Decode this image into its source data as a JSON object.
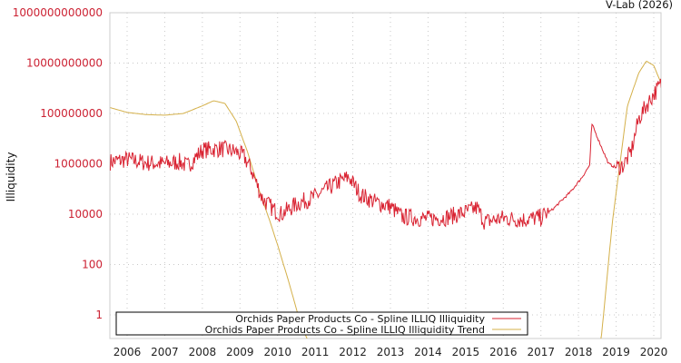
{
  "credit": "V-Lab (2026)",
  "colors": {
    "series": "#d92332",
    "trend": "#d4b04a",
    "grid": "#c8c8c8",
    "frame": "#cccccc",
    "ytick": "#cc2233"
  },
  "chart_data": {
    "type": "line",
    "title": "",
    "xlabel": "",
    "ylabel": "Illiquidity",
    "yscale": "log",
    "ylim": [
      0.1,
      1000000000000
    ],
    "xlim": [
      2005.55,
      2020.2
    ],
    "grid": true,
    "legend_position": "bottom-inside",
    "x_ticks": [
      "2006",
      "2007",
      "2008",
      "2009",
      "2010",
      "2011",
      "2012",
      "2013",
      "2014",
      "2015",
      "2016",
      "2017",
      "2018",
      "2019",
      "2020"
    ],
    "y_ticks": [
      "1000000000000",
      "10000000000",
      "100000000",
      "1000000",
      "10000",
      "100",
      "1"
    ],
    "legend": [
      "Orchids Paper Products Co - Spline ILLIQ Illiquidity",
      "Orchids Paper Products Co - Spline ILLIQ Illiquidity Trend"
    ],
    "series": [
      {
        "name": "Orchids Paper Products Co - Spline ILLIQ Illiquidity",
        "x": [
          2005.55,
          2006.0,
          2006.5,
          2007.0,
          2007.4,
          2007.6,
          2008.0,
          2008.5,
          2008.9,
          2009.1,
          2009.3,
          2009.6,
          2009.9,
          2010.1,
          2010.5,
          2011.0,
          2011.5,
          2011.9,
          2012.2,
          2012.6,
          2013.0,
          2013.3,
          2013.7,
          2014.0,
          2014.5,
          2015.0,
          2015.3,
          2015.5,
          2016.0,
          2016.5,
          2017.0,
          2017.3,
          2017.8,
          2018.1,
          2018.3,
          2018.35,
          2018.6,
          2018.8,
          2019.0,
          2019.2,
          2019.4,
          2019.6,
          2019.8,
          2020.0,
          2020.2
        ],
        "values": [
          1200000,
          1500000,
          1100000,
          1000000,
          1200000,
          800000,
          3500000,
          4000000,
          3000000,
          2000000,
          600000,
          40000,
          15000,
          10000,
          25000,
          50000,
          150000,
          300000,
          60000,
          30000,
          20000,
          8000,
          7000,
          6500,
          7500,
          12000,
          18000,
          5000,
          7000,
          6000,
          7500,
          15000,
          80000,
          300000,
          900000,
          40000000,
          5000000,
          1000000,
          700000,
          900000,
          3000000,
          60000000,
          200000000,
          600000000,
          1500000000
        ]
      },
      {
        "name": "Orchids Paper Products Co - Spline ILLIQ Illiquidity Trend",
        "x": [
          2005.55,
          2006.0,
          2006.5,
          2007.0,
          2007.5,
          2008.0,
          2008.3,
          2008.6,
          2008.9,
          2009.2,
          2009.5,
          2009.8,
          2010.0,
          2010.3,
          2010.6,
          2010.8,
          2018.6,
          2018.9,
          2019.1,
          2019.3,
          2019.6,
          2019.8,
          2020.0,
          2020.2
        ],
        "values": [
          170000000,
          110000000,
          90000000,
          85000000,
          100000000,
          200000000,
          320000000,
          250000000,
          50000000,
          3000000,
          100000,
          5000,
          600,
          20,
          0.5,
          0.1,
          0.1,
          5000,
          1000000,
          200000000,
          4000000000,
          12000000000,
          8000000000,
          1500000000
        ]
      }
    ]
  }
}
